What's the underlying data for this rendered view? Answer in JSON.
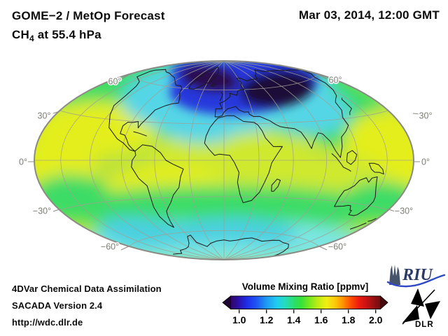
{
  "header": {
    "line1": "GOME−2 / MetOp Forecast",
    "species": "CH",
    "species_sub": "4",
    "level": " at 55.4 hPa",
    "datetime": "Mar 03, 2014, 12:00 GMT"
  },
  "map": {
    "lat_labels_left": [
      "60°",
      "30°",
      "0°",
      "−30°",
      "−60°"
    ],
    "lat_labels_right": [
      "60°",
      "30°",
      "0°",
      "−30°",
      "−60°"
    ],
    "palette": {
      "base": "#bee33c",
      "yellow": "#e3ee1f",
      "yellow_soft": "#cfe92f",
      "green": "#3cdc66",
      "cyan": "#54d6e6",
      "cyan_light": "#7ce6e2",
      "cyan_mid": "#4cd0e0",
      "blue": "#2739dc",
      "dark_core": "#1f0837",
      "dark_core2": "#2c0c4b",
      "coast": "#1a1a1a",
      "graticule": "#a29e92",
      "outline": "#8b8b85"
    }
  },
  "colorbar": {
    "title": "Volume Mixing Ratio [ppmv]",
    "tick_labels": [
      "1.0",
      "1.2",
      "1.4",
      "1.6",
      "1.8",
      "2.0"
    ],
    "arrow_left_color": "#1d0433",
    "arrow_right_color": "#420a0e",
    "gradient": [
      [
        0.0,
        "#33055f"
      ],
      [
        0.05,
        "#2a10a8"
      ],
      [
        0.11,
        "#1e2ee8"
      ],
      [
        0.17,
        "#1e55f2"
      ],
      [
        0.24,
        "#1e9bf2"
      ],
      [
        0.31,
        "#20cdf0"
      ],
      [
        0.36,
        "#25dcc0"
      ],
      [
        0.42,
        "#2ade70"
      ],
      [
        0.47,
        "#35e13a"
      ],
      [
        0.53,
        "#7ee81e"
      ],
      [
        0.59,
        "#c6ec14"
      ],
      [
        0.64,
        "#f2ee12"
      ],
      [
        0.7,
        "#ffc60a"
      ],
      [
        0.745,
        "#ff9800"
      ],
      [
        0.8,
        "#ff5004"
      ],
      [
        0.855,
        "#ee1c0e"
      ],
      [
        0.91,
        "#c41312"
      ],
      [
        0.96,
        "#921011"
      ],
      [
        1.0,
        "#6f0d12"
      ]
    ]
  },
  "footer": {
    "line1": "4DVar Chemical Data Assimilation",
    "line2": "SACADA Version 2.4",
    "line3": "http://wdc.dlr.de"
  },
  "logos": {
    "riu_text": "RIU",
    "dlr_text": "DLR"
  },
  "chart_data": {
    "type": "heatmap",
    "title": "GOME−2 / MetOp Forecast — CH4 at 55.4 hPa",
    "datetime": "Mar 03, 2014, 12:00 GMT",
    "variable": "CH4 volume mixing ratio",
    "units": "ppmv",
    "level_hPa": 55.4,
    "projection": "global elliptical (Hammer-type), graticule every 30°",
    "colorbar_range": [
      1.0,
      2.0
    ],
    "colorbar_ticks": [
      1.0,
      1.2,
      1.4,
      1.6,
      1.8,
      2.0
    ],
    "colorbar_has_out_of_range_arrows": true,
    "regions": [
      {
        "region": "Arctic polar vortex core (Greenland to Barents Sea, 60–85°N)",
        "approx_value_ppmv": 1.0
      },
      {
        "region": "Ring around polar vortex (50–70°N)",
        "approx_value_ppmv": 1.3
      },
      {
        "region": "Northern mid-latitudes (30–50°N)",
        "approx_value_ppmv": 1.45
      },
      {
        "region": "Tropics and subtropics (30°S–30°N)",
        "approx_value_ppmv": 1.55
      },
      {
        "region": "Southern mid-latitudes (30–55°S)",
        "approx_value_ppmv": 1.45
      },
      {
        "region": "Antarctic high latitudes (55–90°S)",
        "approx_value_ppmv": 1.33
      }
    ]
  }
}
